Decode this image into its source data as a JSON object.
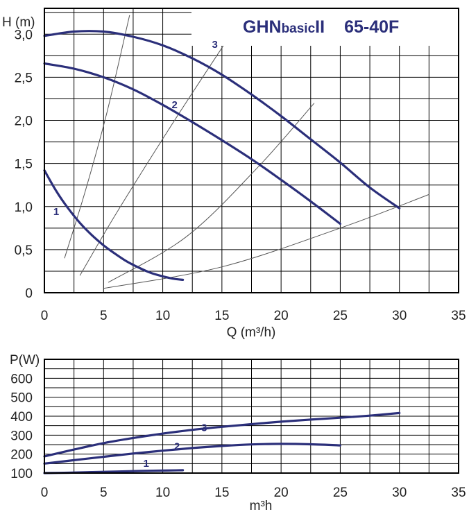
{
  "chart_data": [
    {
      "type": "line",
      "title": "GHNbasicII 65-40F",
      "title_parts": {
        "prefix": "GHN",
        "basic": "basic",
        "suffix": "II",
        "model": "65-40F"
      },
      "xlabel": "Q (m³/h)",
      "ylabel": "H (m)",
      "xlim": [
        0,
        35
      ],
      "ylim": [
        0,
        3.3
      ],
      "grid": true,
      "x_ticks": [
        "0",
        "5",
        "10",
        "15",
        "20",
        "25",
        "30",
        "35"
      ],
      "y_ticks": [
        "0",
        "0,5",
        "1,0",
        "1,5",
        "2,0",
        "2,5",
        "3,0"
      ],
      "series": [
        {
          "name": "1",
          "color": "#2b2f7a",
          "points": [
            [
              0,
              1.42
            ],
            [
              1,
              1.18
            ],
            [
              2,
              0.98
            ],
            [
              3,
              0.81
            ],
            [
              4,
              0.67
            ],
            [
              5,
              0.55
            ],
            [
              6,
              0.45
            ],
            [
              7,
              0.36
            ],
            [
              8,
              0.29
            ],
            [
              9,
              0.23
            ],
            [
              10,
              0.19
            ],
            [
              11,
              0.16
            ],
            [
              11.7,
              0.15
            ]
          ],
          "label_at": [
            1,
            0.9
          ]
        },
        {
          "name": "2",
          "color": "#2b2f7a",
          "points": [
            [
              0,
              2.66
            ],
            [
              2.5,
              2.6
            ],
            [
              5,
              2.5
            ],
            [
              7.5,
              2.36
            ],
            [
              10,
              2.18
            ],
            [
              12.5,
              1.98
            ],
            [
              15,
              1.77
            ],
            [
              17.5,
              1.55
            ],
            [
              20,
              1.31
            ],
            [
              22.5,
              1.06
            ],
            [
              25,
              0.8
            ]
          ],
          "label_at": [
            11,
            2.14
          ]
        },
        {
          "name": "3",
          "color": "#2b2f7a",
          "points": [
            [
              0,
              2.98
            ],
            [
              2.5,
              3.03
            ],
            [
              5,
              3.03
            ],
            [
              7.5,
              2.97
            ],
            [
              10,
              2.87
            ],
            [
              12.5,
              2.72
            ],
            [
              15,
              2.53
            ],
            [
              17.5,
              2.3
            ],
            [
              20,
              2.05
            ],
            [
              22.5,
              1.78
            ],
            [
              25,
              1.51
            ],
            [
              27.5,
              1.22
            ],
            [
              30,
              0.98
            ]
          ],
          "label_at": [
            14.4,
            2.84
          ]
        }
      ],
      "system_curves": [
        [
          [
            1.7,
            0.4
          ],
          [
            3.5,
            1.2
          ],
          [
            5.3,
            2.1
          ],
          [
            7.2,
            3.22
          ]
        ],
        [
          [
            3.0,
            0.2
          ],
          [
            6.2,
            0.95
          ],
          [
            11.0,
            2.0
          ],
          [
            16.0,
            3.05
          ]
        ],
        [
          [
            5.4,
            0.12
          ],
          [
            12.0,
            0.65
          ],
          [
            18.0,
            1.45
          ],
          [
            22.8,
            2.2
          ]
        ],
        [
          [
            5.0,
            0.05
          ],
          [
            15.0,
            0.3
          ],
          [
            25.0,
            0.75
          ],
          [
            32.5,
            1.14
          ]
        ]
      ],
      "curve_color": "#2b2f7a",
      "grid_color": "#000000"
    },
    {
      "type": "line",
      "title": "",
      "xlabel": "m³h",
      "ylabel": "P(W)",
      "xlim": [
        0,
        35
      ],
      "ylim": [
        100,
        700
      ],
      "grid": true,
      "x_ticks": [
        "0",
        "5",
        "10",
        "15",
        "20",
        "25",
        "30",
        "35"
      ],
      "y_ticks": [
        "100",
        "200",
        "300",
        "400",
        "500",
        "600"
      ],
      "series": [
        {
          "name": "1",
          "color": "#2b2f7a",
          "points": [
            [
              0,
              100
            ],
            [
              2,
              102
            ],
            [
              4,
              105
            ],
            [
              6,
              108
            ],
            [
              8,
              111
            ],
            [
              10,
              113
            ],
            [
              11.7,
              115
            ]
          ],
          "label_at": [
            8.6,
            133
          ]
        },
        {
          "name": "2",
          "color": "#2b2f7a",
          "points": [
            [
              0,
              150
            ],
            [
              2.5,
              168
            ],
            [
              5,
              186
            ],
            [
              7.5,
              203
            ],
            [
              10,
              218
            ],
            [
              12.5,
              232
            ],
            [
              15,
              243
            ],
            [
              17.5,
              251
            ],
            [
              20,
              254
            ],
            [
              22.5,
              252
            ],
            [
              25,
              246
            ]
          ],
          "label_at": [
            11.2,
            222
          ]
        },
        {
          "name": "3",
          "color": "#2b2f7a",
          "points": [
            [
              0,
              188
            ],
            [
              2.5,
              224
            ],
            [
              5,
              258
            ],
            [
              7.5,
              285
            ],
            [
              10,
              308
            ],
            [
              12.5,
              328
            ],
            [
              15,
              344
            ],
            [
              17.5,
              358
            ],
            [
              20,
              371
            ],
            [
              22.5,
              382
            ],
            [
              25,
              392
            ],
            [
              27.5,
              403
            ],
            [
              30,
              417
            ]
          ],
          "label_at": [
            13.5,
            321
          ]
        }
      ],
      "curve_color": "#2b2f7a",
      "grid_color": "#000000"
    }
  ]
}
